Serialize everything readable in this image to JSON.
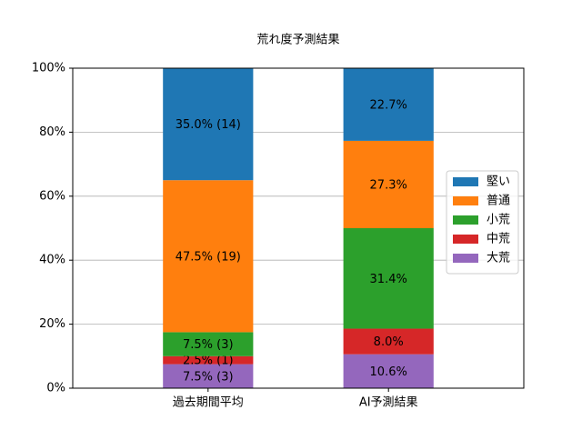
{
  "chart_data": {
    "type": "stacked_bar",
    "title": "荒れ度予測結果",
    "categories": [
      "過去期間平均",
      "AI予測結果"
    ],
    "series": [
      {
        "name": "堅い",
        "color": "#1f77b4",
        "values": [
          35.0,
          22.7
        ],
        "value_labels": [
          "35.0% (14)",
          "22.7%"
        ]
      },
      {
        "name": "普通",
        "color": "#ff7f0e",
        "values": [
          47.5,
          27.3
        ],
        "value_labels": [
          "47.5% (19)",
          "27.3%"
        ]
      },
      {
        "name": "小荒",
        "color": "#2ca02c",
        "values": [
          7.5,
          31.4
        ],
        "value_labels": [
          "7.5% (3)",
          "31.4%"
        ]
      },
      {
        "name": "中荒",
        "color": "#d62728",
        "values": [
          2.5,
          8.0
        ],
        "value_labels": [
          "2.5% (1)",
          "8.0%"
        ]
      },
      {
        "name": "大荒",
        "color": "#9467bd",
        "values": [
          7.5,
          10.6
        ],
        "value_labels": [
          "7.5% (3)",
          "10.6%"
        ]
      }
    ],
    "ylim": [
      0,
      100
    ],
    "yticks": [
      {
        "value": 0,
        "label": "0%"
      },
      {
        "value": 20,
        "label": "20%"
      },
      {
        "value": 40,
        "label": "40%"
      },
      {
        "value": 60,
        "label": "60%"
      },
      {
        "value": 80,
        "label": "80%"
      },
      {
        "value": 100,
        "label": "100%"
      }
    ],
    "grid": true,
    "legend": "right"
  }
}
